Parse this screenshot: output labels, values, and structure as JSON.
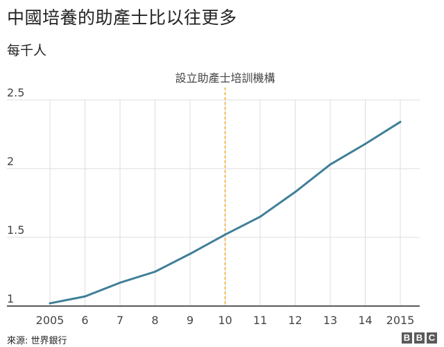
{
  "header": {
    "title": "中國培養的助產士比以往更多",
    "subtitle": "每千人"
  },
  "footer": {
    "source": "來源: 世界銀行",
    "logo_letters": [
      "B",
      "B",
      "C"
    ]
  },
  "colors": {
    "line": "#3f7f97",
    "annotation": "#f5a623",
    "grid": "#dddddd",
    "axis": "#222222"
  },
  "chart_data": {
    "type": "line",
    "title": "中國培養的助產士比以往更多",
    "subtitle": "每千人",
    "x": [
      2005,
      2006,
      2007,
      2008,
      2009,
      2010,
      2011,
      2012,
      2013,
      2014,
      2015
    ],
    "x_tick_labels": [
      "2005",
      "6",
      "7",
      "8",
      "9",
      "10",
      "11",
      "12",
      "13",
      "14",
      "2015"
    ],
    "series": [
      {
        "values": [
          1.02,
          1.07,
          1.17,
          1.25,
          1.38,
          1.52,
          1.65,
          1.83,
          2.03,
          2.18,
          2.34
        ]
      }
    ],
    "y_ticks": [
      1,
      1.5,
      2,
      2.5
    ],
    "y_tick_labels": [
      "1",
      "1.5",
      "2",
      "2.5"
    ],
    "xlim": [
      2005,
      2015
    ],
    "ylim": [
      1,
      2.5
    ],
    "grid": true,
    "annotations": [
      {
        "x": 2010,
        "label": "設立助產士培訓機構"
      }
    ],
    "xlabel": "",
    "ylabel": ""
  }
}
